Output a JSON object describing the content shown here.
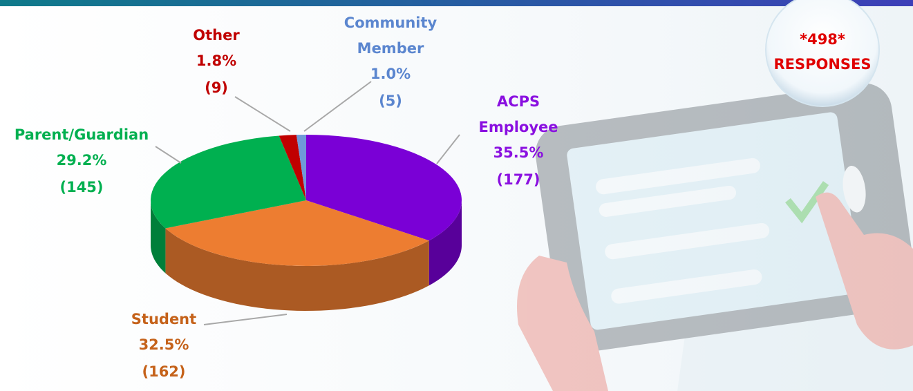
{
  "chart_data": {
    "type": "pie",
    "categories": [
      "ACPS Employee",
      "Student",
      "Parent/Guardian",
      "Other",
      "Community Member"
    ],
    "values": [
      35.5,
      32.5,
      29.2,
      1.8,
      1.0
    ],
    "value_labels": [
      "35.5%",
      "32.5%",
      "29.2%",
      "1.8%",
      "1.0%"
    ],
    "counts": [
      177,
      162,
      145,
      9,
      5
    ],
    "count_labels": [
      "(177)",
      "(162)",
      "(145)",
      "(9)",
      "(5)"
    ],
    "colors": [
      "#7a00d6",
      "#ed7d31",
      "#00b050",
      "#c00000",
      "#6f9ad8"
    ],
    "label_colors": [
      "#8a10e0",
      "#c5621a",
      "#00b050",
      "#c00000",
      "#5b86cf"
    ],
    "annotation": {
      "total": "*498*",
      "text": "RESPONSES"
    }
  }
}
